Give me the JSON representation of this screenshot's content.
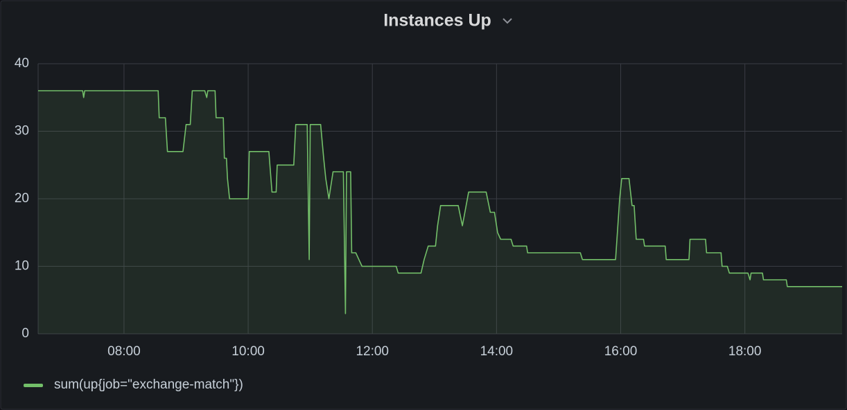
{
  "chart_data": {
    "type": "line",
    "title": "Instances Up",
    "x": [
      "06:37",
      "07:20",
      "07:21",
      "07:22",
      "08:33",
      "08:34",
      "08:40",
      "08:42",
      "08:57",
      "09:00",
      "09:04",
      "09:06",
      "09:18",
      "09:20",
      "09:21",
      "09:28",
      "09:29",
      "09:36",
      "09:37",
      "09:39",
      "09:40",
      "09:42",
      "10:00",
      "10:01",
      "10:20",
      "10:23",
      "10:27",
      "10:28",
      "10:44",
      "10:46",
      "10:57",
      "10:59",
      "11:00",
      "11:10",
      "11:13",
      "11:15",
      "11:18",
      "11:22",
      "11:32",
      "11:34",
      "11:35",
      "11:39",
      "11:40",
      "11:44",
      "11:47",
      "11:50",
      "12:23",
      "12:25",
      "12:47",
      "12:50",
      "12:54",
      "13:01",
      "13:03",
      "13:06",
      "13:23",
      "13:27",
      "13:33",
      "13:50",
      "13:54",
      "13:58",
      "14:01",
      "14:04",
      "14:14",
      "14:16",
      "14:29",
      "14:30",
      "15:21",
      "15:23",
      "15:55",
      "15:59",
      "16:01",
      "16:08",
      "16:11",
      "16:13",
      "16:15",
      "16:22",
      "16:23",
      "16:43",
      "16:44",
      "17:06",
      "17:07",
      "17:22",
      "17:23",
      "17:37",
      "17:38",
      "17:43",
      "17:45",
      "18:03",
      "18:05",
      "18:06",
      "18:17",
      "18:18",
      "18:40",
      "18:41",
      "19:34"
    ],
    "series": [
      {
        "name": "sum(up{job=\"exchange-match\"})",
        "color": "#73bf69",
        "values": [
          36,
          36,
          35,
          36,
          36,
          32,
          32,
          27,
          27,
          31,
          31,
          36,
          36,
          35,
          36,
          36,
          32,
          32,
          26,
          26,
          23,
          20,
          20,
          27,
          27,
          21,
          21,
          25,
          25,
          31,
          31,
          11,
          31,
          31,
          26,
          23,
          20,
          24,
          24,
          3,
          24,
          24,
          12,
          12,
          11,
          10,
          10,
          9,
          9,
          11,
          13,
          13,
          16,
          19,
          19,
          16,
          21,
          21,
          18,
          18,
          15,
          14,
          14,
          13,
          13,
          12,
          12,
          11,
          11,
          20,
          23,
          23,
          19,
          19,
          14,
          14,
          13,
          13,
          11,
          11,
          14,
          14,
          12,
          12,
          10,
          10,
          9,
          9,
          8,
          9,
          9,
          8,
          8,
          7,
          7
        ]
      }
    ],
    "xlim": [
      "06:37",
      "19:34"
    ],
    "xticks": [
      "08:00",
      "10:00",
      "12:00",
      "14:00",
      "16:00",
      "18:00"
    ],
    "ylim": [
      0,
      40
    ],
    "yticks": [
      0,
      10,
      20,
      30,
      40
    ],
    "grid": true,
    "legend": "bottom-left"
  }
}
